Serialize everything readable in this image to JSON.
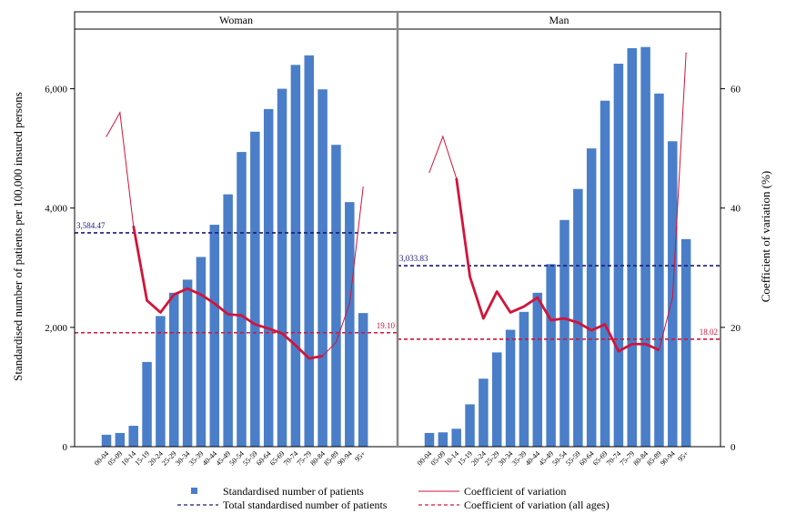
{
  "chart_data": {
    "type": "bar",
    "ylabel_left": "Standardised number of patients per 100,000 insured persons",
    "ylabel_right": "Coefficient of variation (%)",
    "ylim_left": [
      0,
      7000
    ],
    "ylim_right": [
      0,
      70
    ],
    "yticks_left": [
      "0",
      "2,000",
      "4,000",
      "6,000"
    ],
    "yticks_right": [
      "0",
      "20",
      "40",
      "60"
    ],
    "categories": [
      "00-04",
      "05-09",
      "10-14",
      "15-19",
      "20-24",
      "25-29",
      "30-34",
      "35-39",
      "40-44",
      "45-49",
      "50-54",
      "55-59",
      "60-64",
      "65-69",
      "70-74",
      "75-79",
      "80-84",
      "85-89",
      "90-94",
      "95+"
    ],
    "legend": {
      "bars": "Standardised number of patients",
      "cv": "Coefficient of variation",
      "total": "Total standardised number of patients",
      "cv_all": "Coefficient of variation (all ages)"
    },
    "colors": {
      "bars": "#4a7ec8",
      "cv": "#d2143a",
      "total": "#1a1a7a",
      "cv_all": "#d2143a"
    },
    "panels": [
      {
        "title": "Woman",
        "bars": [
          200,
          230,
          350,
          1420,
          2190,
          2580,
          2800,
          3180,
          3720,
          4230,
          4940,
          5280,
          5660,
          6000,
          6400,
          6560,
          5990,
          5060,
          4100,
          2240
        ],
        "cv": [
          52,
          56,
          37,
          24.5,
          22.5,
          25.5,
          26.5,
          25.5,
          24,
          22.2,
          22,
          20.5,
          19.8,
          19,
          17,
          14.8,
          15.2,
          17.5,
          24,
          43.5
        ],
        "cv_thick_range": [
          2,
          16
        ],
        "total": 3584.47,
        "total_label": "3,584.47",
        "cv_all": 19.1,
        "cv_all_label": "19.10"
      },
      {
        "title": "Man",
        "bars": [
          230,
          240,
          300,
          710,
          1140,
          1580,
          1960,
          2260,
          2580,
          3060,
          3800,
          4320,
          5000,
          5800,
          6420,
          6680,
          6700,
          5920,
          5120,
          3480
        ],
        "cv": [
          46,
          52,
          45,
          28.5,
          21.5,
          26,
          22.5,
          23.5,
          25,
          21.2,
          21.5,
          20.8,
          19.5,
          20.5,
          16,
          17.2,
          17.2,
          16.2,
          25,
          66
        ],
        "cv_thick_range": [
          2,
          17
        ],
        "total": 3033.83,
        "total_label": "3,033.83",
        "cv_all": 18.02,
        "cv_all_label": "18.02"
      }
    ]
  }
}
